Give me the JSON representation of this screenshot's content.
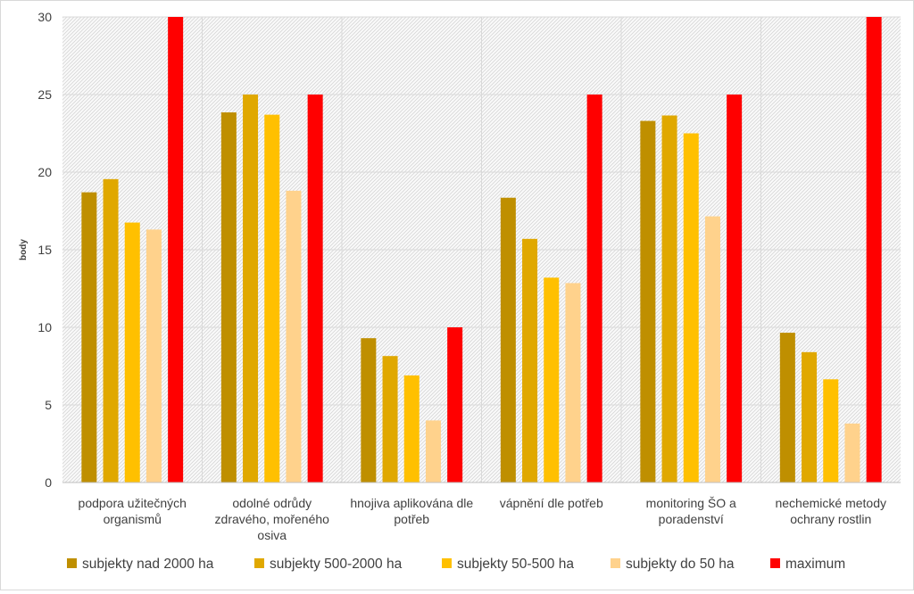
{
  "chart_data": {
    "type": "bar",
    "title": "",
    "xlabel": "",
    "ylabel": "body",
    "ylim": [
      0,
      30
    ],
    "y_ticks": [
      0,
      5,
      10,
      15,
      20,
      25,
      30
    ],
    "grid": true,
    "legend_position": "bottom",
    "categories": [
      [
        "podpora užitečných",
        "organismů"
      ],
      [
        "odolné odrůdy",
        "zdravého, mořeného",
        "osiva"
      ],
      [
        "hnojiva aplikována dle",
        "potřeb"
      ],
      [
        "vápnění dle potřeb"
      ],
      [
        "monitoring ŠO a",
        "poradenství"
      ],
      [
        "nechemické metody",
        "ochrany rostlin"
      ]
    ],
    "series": [
      {
        "name": "subjekty nad 2000 ha",
        "color": "#bf8f00",
        "values": [
          18.7,
          23.85,
          9.3,
          18.35,
          23.3,
          9.65
        ]
      },
      {
        "name": "subjekty 500-2000 ha",
        "color": "#e0a800",
        "values": [
          19.55,
          25.0,
          8.15,
          15.7,
          23.65,
          8.4
        ]
      },
      {
        "name": "subjekty 50-500 ha",
        "color": "#ffc000",
        "values": [
          16.75,
          23.7,
          6.9,
          13.2,
          22.5,
          6.65
        ]
      },
      {
        "name": "subjekty do 50 ha",
        "color": "#ffd28c",
        "values": [
          16.3,
          18.8,
          4.0,
          12.85,
          17.15,
          3.8
        ]
      },
      {
        "name": "maximum",
        "color": "#ff0000",
        "values": [
          30,
          25,
          10,
          25,
          25,
          30
        ]
      }
    ]
  }
}
